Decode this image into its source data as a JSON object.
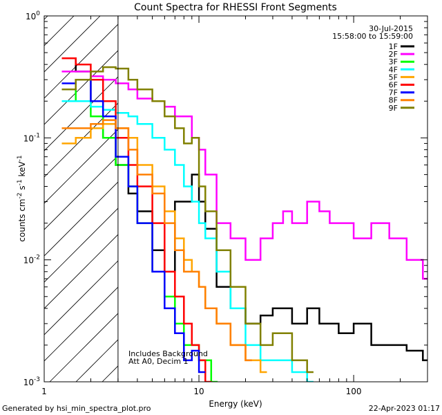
{
  "chart_data": {
    "type": "line",
    "title": "Count Spectra for RHESSI Front Segments",
    "xlabel": "Energy (keV)",
    "ylabel_parts": {
      "base": "counts cm",
      "exp1": "-2",
      "mid1": " s",
      "exp2": "-1",
      "mid2": " keV",
      "exp3": "-1"
    },
    "xscale": "log",
    "yscale": "log",
    "xlim": [
      1,
      300
    ],
    "ylim": [
      0.001,
      1
    ],
    "x_ticks": [
      {
        "v": 1,
        "label": "1"
      },
      {
        "v": 10,
        "label": "10"
      },
      {
        "v": 100,
        "label": "100"
      }
    ],
    "y_ticks": [
      {
        "v": 1,
        "base": "10",
        "exp": "0"
      },
      {
        "v": 0.1,
        "base": "10",
        "exp": "-1"
      },
      {
        "v": 0.01,
        "base": "10",
        "exp": "-2"
      },
      {
        "v": 0.001,
        "base": "10",
        "exp": "-3"
      }
    ],
    "date": "30-Jul-2015",
    "time_range": "15:58:00 to 15:59:00",
    "annotation_lines": [
      "Includes Background",
      "Att A0, Decim 1"
    ],
    "hatch_region_kev": [
      1,
      3
    ],
    "legend_position": "top-right",
    "series": [
      {
        "name": "1F",
        "color": "#000000",
        "points": [
          [
            1.3,
            0.45
          ],
          [
            1.6,
            0.35
          ],
          [
            2.0,
            0.2
          ],
          [
            2.4,
            0.1
          ],
          [
            2.9,
            0.06
          ],
          [
            3.5,
            0.035
          ],
          [
            4.0,
            0.025
          ],
          [
            5.0,
            0.012
          ],
          [
            6.0,
            0.008
          ],
          [
            7.0,
            0.03
          ],
          [
            8.0,
            0.03
          ],
          [
            9.0,
            0.05
          ],
          [
            10,
            0.03
          ],
          [
            11,
            0.018
          ],
          [
            13,
            0.006
          ],
          [
            16,
            0.004
          ],
          [
            20,
            0.003
          ],
          [
            25,
            0.0035
          ],
          [
            30,
            0.004
          ],
          [
            40,
            0.003
          ],
          [
            50,
            0.004
          ],
          [
            60,
            0.003
          ],
          [
            80,
            0.0025
          ],
          [
            100,
            0.003
          ],
          [
            130,
            0.002
          ],
          [
            170,
            0.002
          ],
          [
            220,
            0.0018
          ],
          [
            280,
            0.0015
          ]
        ]
      },
      {
        "name": "2F",
        "color": "#ff00ff",
        "points": [
          [
            1.3,
            0.35
          ],
          [
            1.6,
            0.35
          ],
          [
            2.0,
            0.32
          ],
          [
            2.4,
            0.3
          ],
          [
            2.9,
            0.28
          ],
          [
            3.5,
            0.25
          ],
          [
            4.0,
            0.21
          ],
          [
            5.0,
            0.2
          ],
          [
            6.0,
            0.18
          ],
          [
            7.0,
            0.15
          ],
          [
            8.0,
            0.15
          ],
          [
            9.0,
            0.1
          ],
          [
            10,
            0.08
          ],
          [
            11,
            0.05
          ],
          [
            13,
            0.02
          ],
          [
            16,
            0.015
          ],
          [
            20,
            0.01
          ],
          [
            25,
            0.015
          ],
          [
            30,
            0.02
          ],
          [
            35,
            0.025
          ],
          [
            40,
            0.02
          ],
          [
            50,
            0.03
          ],
          [
            60,
            0.025
          ],
          [
            70,
            0.02
          ],
          [
            80,
            0.02
          ],
          [
            100,
            0.015
          ],
          [
            130,
            0.02
          ],
          [
            170,
            0.015
          ],
          [
            220,
            0.01
          ],
          [
            280,
            0.007
          ]
        ]
      },
      {
        "name": "3F",
        "color": "#00ff00",
        "points": [
          [
            1.3,
            0.25
          ],
          [
            1.6,
            0.2
          ],
          [
            2.0,
            0.15
          ],
          [
            2.4,
            0.1
          ],
          [
            2.9,
            0.06
          ],
          [
            3.5,
            0.04
          ],
          [
            4.0,
            0.02
          ],
          [
            5.0,
            0.008
          ],
          [
            6.0,
            0.005
          ],
          [
            7.0,
            0.003
          ],
          [
            8.0,
            0.002
          ],
          [
            10,
            0.0015
          ],
          [
            12,
            0.001
          ]
        ]
      },
      {
        "name": "4F",
        "color": "#00ffff",
        "points": [
          [
            1.3,
            0.2
          ],
          [
            1.6,
            0.2
          ],
          [
            2.0,
            0.18
          ],
          [
            2.4,
            0.17
          ],
          [
            2.9,
            0.16
          ],
          [
            3.5,
            0.15
          ],
          [
            4.0,
            0.13
          ],
          [
            5.0,
            0.1
          ],
          [
            6.0,
            0.08
          ],
          [
            7.0,
            0.06
          ],
          [
            8.0,
            0.04
          ],
          [
            9.0,
            0.03
          ],
          [
            10,
            0.02
          ],
          [
            11,
            0.015
          ],
          [
            13,
            0.008
          ],
          [
            16,
            0.004
          ],
          [
            20,
            0.002
          ],
          [
            25,
            0.0015
          ],
          [
            30,
            0.0015
          ],
          [
            40,
            0.0012
          ],
          [
            50,
            0.001
          ]
        ]
      },
      {
        "name": "5F",
        "color": "#ffa500",
        "points": [
          [
            1.3,
            0.09
          ],
          [
            1.6,
            0.1
          ],
          [
            2.0,
            0.12
          ],
          [
            2.4,
            0.13
          ],
          [
            2.9,
            0.12
          ],
          [
            3.5,
            0.1
          ],
          [
            4.0,
            0.06
          ],
          [
            5.0,
            0.04
          ],
          [
            6.0,
            0.025
          ],
          [
            7.0,
            0.015
          ],
          [
            8.0,
            0.01
          ],
          [
            9.0,
            0.008
          ],
          [
            10,
            0.006
          ],
          [
            11,
            0.004
          ],
          [
            13,
            0.003
          ],
          [
            16,
            0.002
          ],
          [
            20,
            0.0015
          ],
          [
            25,
            0.0012
          ]
        ]
      },
      {
        "name": "6F",
        "color": "#ff0000",
        "points": [
          [
            1.3,
            0.45
          ],
          [
            1.6,
            0.4
          ],
          [
            2.0,
            0.3
          ],
          [
            2.4,
            0.2
          ],
          [
            2.9,
            0.1
          ],
          [
            3.5,
            0.06
          ],
          [
            4.0,
            0.04
          ],
          [
            5.0,
            0.02
          ],
          [
            6.0,
            0.008
          ],
          [
            7.0,
            0.005
          ],
          [
            8.0,
            0.003
          ],
          [
            9.0,
            0.002
          ],
          [
            10,
            0.0015
          ],
          [
            11,
            0.001
          ]
        ]
      },
      {
        "name": "7F",
        "color": "#0000ff",
        "points": [
          [
            1.3,
            0.28
          ],
          [
            1.6,
            0.3
          ],
          [
            2.0,
            0.2
          ],
          [
            2.4,
            0.15
          ],
          [
            2.9,
            0.07
          ],
          [
            3.5,
            0.04
          ],
          [
            4.0,
            0.02
          ],
          [
            5.0,
            0.008
          ],
          [
            6.0,
            0.004
          ],
          [
            7.0,
            0.0025
          ],
          [
            8.0,
            0.0015
          ],
          [
            9.0,
            0.0018
          ],
          [
            10,
            0.0012
          ]
        ]
      },
      {
        "name": "8F",
        "color": "#ff8000",
        "points": [
          [
            1.3,
            0.12
          ],
          [
            1.6,
            0.12
          ],
          [
            2.0,
            0.13
          ],
          [
            2.4,
            0.14
          ],
          [
            2.9,
            0.12
          ],
          [
            3.5,
            0.08
          ],
          [
            4.0,
            0.05
          ],
          [
            5.0,
            0.035
          ],
          [
            6.0,
            0.02
          ],
          [
            7.0,
            0.012
          ],
          [
            8.0,
            0.008
          ],
          [
            9.0,
            0.008
          ],
          [
            10,
            0.006
          ],
          [
            11,
            0.004
          ],
          [
            13,
            0.003
          ],
          [
            16,
            0.002
          ],
          [
            20,
            0.0015
          ]
        ]
      },
      {
        "name": "9F",
        "color": "#808000",
        "points": [
          [
            1.3,
            0.25
          ],
          [
            1.6,
            0.3
          ],
          [
            2.0,
            0.35
          ],
          [
            2.4,
            0.38
          ],
          [
            2.9,
            0.37
          ],
          [
            3.5,
            0.3
          ],
          [
            4.0,
            0.25
          ],
          [
            5.0,
            0.2
          ],
          [
            6.0,
            0.15
          ],
          [
            7.0,
            0.12
          ],
          [
            8.0,
            0.09
          ],
          [
            9.0,
            0.1
          ],
          [
            10,
            0.04
          ],
          [
            11,
            0.025
          ],
          [
            13,
            0.012
          ],
          [
            16,
            0.006
          ],
          [
            20,
            0.003
          ],
          [
            25,
            0.002
          ],
          [
            30,
            0.0025
          ],
          [
            40,
            0.0015
          ],
          [
            50,
            0.0012
          ]
        ]
      }
    ]
  },
  "footer": {
    "generated_by": "Generated by hsi_min_spectra_plot.pro",
    "timestamp": "22-Apr-2023 01:17"
  }
}
